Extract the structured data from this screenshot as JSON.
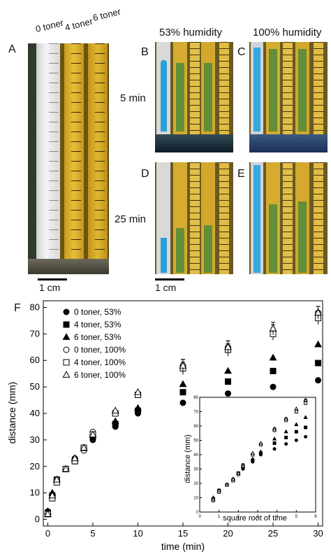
{
  "panelA": {
    "letter": "A",
    "strip_labels": [
      "0 toner",
      "4 toner",
      "6 toner"
    ],
    "scale": "1 cm"
  },
  "panelsBCDE": {
    "col_headers": [
      "53% humidity",
      "100% humidity"
    ],
    "row_labels": [
      "5 min",
      "25 min"
    ],
    "letters": [
      "B",
      "C",
      "D",
      "E"
    ],
    "scale": "1 cm"
  },
  "panelF": {
    "letter": "F",
    "xlabel": "time (min)",
    "ylabel": "distance (mm)",
    "legend": [
      {
        "label": "0 toner, 53%",
        "marker": "circle-filled"
      },
      {
        "label": "4 toner, 53%",
        "marker": "square-filled"
      },
      {
        "label": "6 toner, 53%",
        "marker": "triangle-filled"
      },
      {
        "label": "0 toner, 100%",
        "marker": "circle-open"
      },
      {
        "label": "4 toner, 100%",
        "marker": "square-open"
      },
      {
        "label": "6 toner, 100%",
        "marker": "triangle-open"
      }
    ],
    "inset": {
      "xlabel": "square root of time",
      "ylabel": "distance (mm)"
    }
  },
  "chart_data": [
    {
      "type": "scatter",
      "xlabel": "time (min)",
      "ylabel": "distance (mm)",
      "xlim": [
        0,
        30
      ],
      "ylim": [
        0,
        80
      ],
      "xticks": [
        0,
        5,
        10,
        15,
        20,
        25,
        30
      ],
      "yticks": [
        0,
        10,
        20,
        30,
        40,
        50,
        60,
        70,
        80
      ],
      "series": [
        {
          "name": "0 toner, 53%",
          "marker": "circle-filled",
          "points": [
            [
              0,
              3
            ],
            [
              0.5,
              9
            ],
            [
              1,
              15
            ],
            [
              2,
              19
            ],
            [
              3,
              23
            ],
            [
              4,
              27
            ],
            [
              5,
              30
            ],
            [
              7.5,
              35
            ],
            [
              10,
              40
            ],
            [
              15,
              44
            ],
            [
              20,
              47.5
            ],
            [
              25,
              50
            ],
            [
              30,
              52.5
            ]
          ]
        },
        {
          "name": "4 toner, 53%",
          "marker": "square-filled",
          "points": [
            [
              0,
              2.5
            ],
            [
              0.5,
              9
            ],
            [
              1,
              15
            ],
            [
              2,
              19
            ],
            [
              3,
              22
            ],
            [
              4,
              27
            ],
            [
              5,
              31
            ],
            [
              7.5,
              36
            ],
            [
              10,
              41
            ],
            [
              15,
              48
            ],
            [
              20,
              52
            ],
            [
              25,
              56
            ],
            [
              30,
              59
            ]
          ]
        },
        {
          "name": "6 toner, 53%",
          "marker": "triangle-filled",
          "points": [
            [
              0,
              3
            ],
            [
              0.5,
              10
            ],
            [
              1,
              15
            ],
            [
              2,
              19
            ],
            [
              3,
              23
            ],
            [
              4,
              27
            ],
            [
              5,
              32
            ],
            [
              7.5,
              37
            ],
            [
              10,
              42
            ],
            [
              15,
              51
            ],
            [
              20,
              56
            ],
            [
              25,
              61
            ],
            [
              30,
              66
            ]
          ]
        },
        {
          "name": "0 toner, 100%",
          "marker": "circle-open",
          "points": [
            [
              0,
              2
            ],
            [
              0.5,
              8
            ],
            [
              1,
              15
            ],
            [
              2,
              19
            ],
            [
              3,
              22
            ],
            [
              4,
              26
            ],
            [
              5,
              33
            ],
            [
              7.5,
              40
            ],
            [
              10,
              47
            ],
            [
              15,
              58
            ],
            [
              20,
              65
            ],
            [
              25,
              71
            ],
            [
              30,
              78
            ]
          ]
        },
        {
          "name": "4 toner, 100%",
          "marker": "square-open",
          "points": [
            [
              0,
              2
            ],
            [
              0.5,
              8
            ],
            [
              1,
              14
            ],
            [
              2,
              19
            ],
            [
              3,
              22
            ],
            [
              4,
              27
            ],
            [
              5,
              32
            ],
            [
              7.5,
              40
            ],
            [
              10,
              47
            ],
            [
              15,
              57
            ],
            [
              20,
              64
            ],
            [
              25,
              70
            ],
            [
              30,
              76
            ]
          ]
        },
        {
          "name": "6 toner, 100%",
          "marker": "triangle-open",
          "points": [
            [
              0,
              2
            ],
            [
              0.5,
              9
            ],
            [
              1,
              15
            ],
            [
              2,
              19
            ],
            [
              3,
              23
            ],
            [
              4,
              27
            ],
            [
              5,
              32
            ],
            [
              7.5,
              41
            ],
            [
              10,
              48
            ],
            [
              15,
              58
            ],
            [
              20,
              65
            ],
            [
              25,
              72
            ],
            [
              30,
              78
            ]
          ]
        }
      ]
    },
    {
      "type": "scatter",
      "xlabel": "square root of time",
      "ylabel": "distance (mm)",
      "xlim": [
        0,
        6
      ],
      "ylim": [
        0,
        80
      ],
      "xticks": [
        0,
        1,
        2,
        3,
        4,
        5,
        6
      ],
      "yticks": [
        0,
        10,
        20,
        30,
        40,
        50,
        60,
        70,
        80
      ],
      "series": [
        {
          "marker": "circle-filled",
          "points": [
            [
              0.7,
              9
            ],
            [
              1,
              15
            ],
            [
              1.41,
              19
            ],
            [
              1.73,
              23
            ],
            [
              2,
              27
            ],
            [
              2.24,
              30
            ],
            [
              2.74,
              35
            ],
            [
              3.16,
              40
            ],
            [
              3.87,
              44
            ],
            [
              4.47,
              47.5
            ],
            [
              5,
              50
            ],
            [
              5.48,
              52.5
            ]
          ]
        },
        {
          "marker": "square-filled",
          "points": [
            [
              0.7,
              9
            ],
            [
              1,
              15
            ],
            [
              1.41,
              19
            ],
            [
              1.73,
              22
            ],
            [
              2,
              27
            ],
            [
              2.24,
              31
            ],
            [
              2.74,
              36
            ],
            [
              3.16,
              41
            ],
            [
              3.87,
              48
            ],
            [
              4.47,
              52
            ],
            [
              5,
              56
            ],
            [
              5.48,
              59
            ]
          ]
        },
        {
          "marker": "triangle-filled",
          "points": [
            [
              0.7,
              10
            ],
            [
              1,
              15
            ],
            [
              1.41,
              19
            ],
            [
              1.73,
              23
            ],
            [
              2,
              27
            ],
            [
              2.24,
              32
            ],
            [
              2.74,
              37
            ],
            [
              3.16,
              42
            ],
            [
              3.87,
              51
            ],
            [
              4.47,
              56
            ],
            [
              5,
              61
            ],
            [
              5.48,
              66
            ]
          ]
        },
        {
          "marker": "circle-open",
          "points": [
            [
              0.7,
              8
            ],
            [
              1,
              15
            ],
            [
              1.41,
              19
            ],
            [
              1.73,
              22
            ],
            [
              2,
              26
            ],
            [
              2.24,
              33
            ],
            [
              2.74,
              40
            ],
            [
              3.16,
              47
            ],
            [
              3.87,
              58
            ],
            [
              4.47,
              65
            ],
            [
              5,
              71
            ],
            [
              5.48,
              78
            ]
          ]
        },
        {
          "marker": "square-open",
          "points": [
            [
              0.7,
              8
            ],
            [
              1,
              14
            ],
            [
              1.41,
              19
            ],
            [
              1.73,
              22
            ],
            [
              2,
              27
            ],
            [
              2.24,
              32
            ],
            [
              2.74,
              40
            ],
            [
              3.16,
              47
            ],
            [
              3.87,
              57
            ],
            [
              4.47,
              64
            ],
            [
              5,
              70
            ],
            [
              5.48,
              76
            ]
          ]
        },
        {
          "marker": "triangle-open",
          "points": [
            [
              0.7,
              9
            ],
            [
              1,
              15
            ],
            [
              1.41,
              19
            ],
            [
              1.73,
              23
            ],
            [
              2,
              27
            ],
            [
              2.24,
              32
            ],
            [
              2.74,
              41
            ],
            [
              3.16,
              48
            ],
            [
              3.87,
              58
            ],
            [
              4.47,
              65
            ],
            [
              5,
              72
            ],
            [
              5.48,
              78
            ]
          ]
        }
      ]
    }
  ]
}
